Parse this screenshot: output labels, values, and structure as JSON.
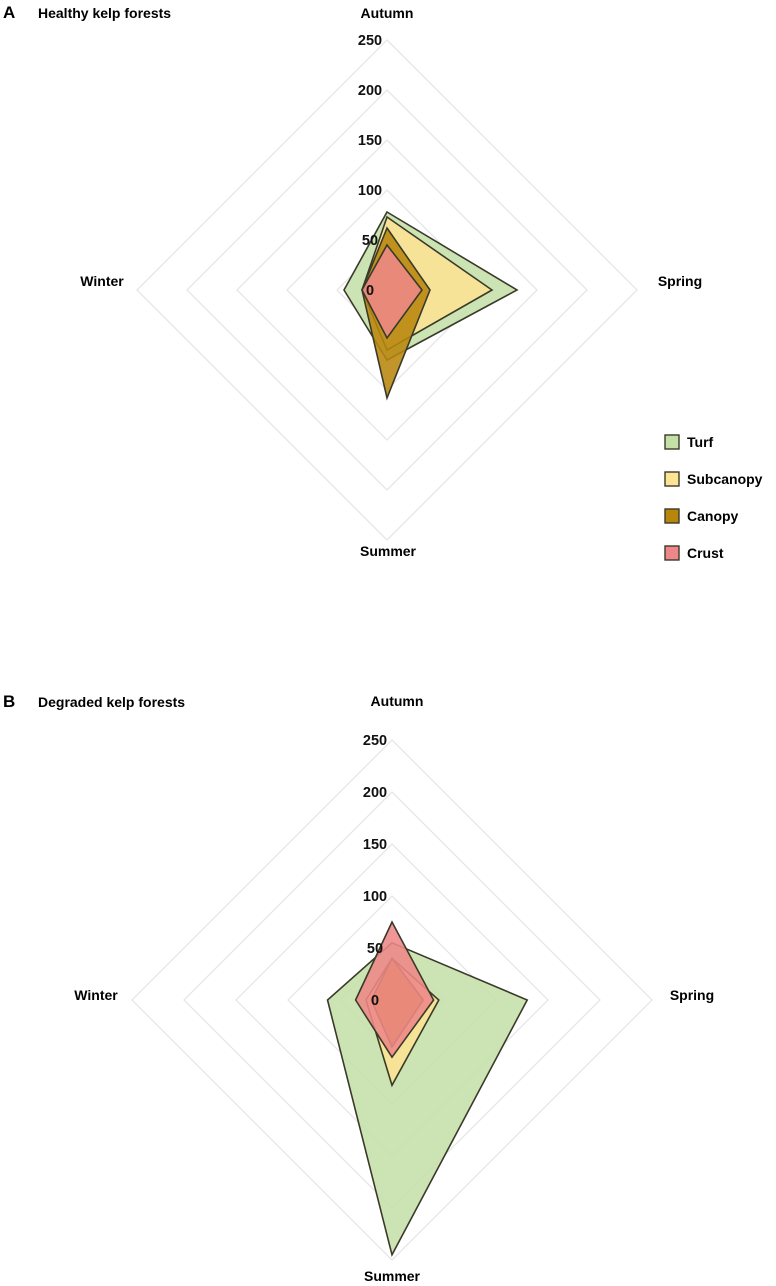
{
  "chart_data": [
    {
      "type": "radar",
      "panel_letter": "A",
      "title": "Healthy kelp forests",
      "axes": [
        "Autumn",
        "Spring",
        "Summer",
        "Winter"
      ],
      "rlim": [
        0,
        250
      ],
      "ticks": [
        0,
        50,
        100,
        150,
        200,
        250
      ],
      "grid": true,
      "legend": "right",
      "series": [
        {
          "name": "Turf",
          "values": [
            78,
            130,
            70,
            43
          ],
          "color": "#c5dfa8"
        },
        {
          "name": "Subcanopy",
          "values": [
            73,
            105,
            60,
            25
          ],
          "color": "#fde394"
        },
        {
          "name": "Canopy",
          "values": [
            62,
            43,
            108,
            25
          ],
          "color": "#b8860b"
        },
        {
          "name": "Crust",
          "values": [
            45,
            35,
            48,
            25
          ],
          "color": "#ee8888"
        }
      ]
    },
    {
      "type": "radar",
      "panel_letter": "B",
      "title": "Degraded kelp forests",
      "axes": [
        "Autumn",
        "Spring",
        "Summer",
        "Winter"
      ],
      "rlim": [
        0,
        250
      ],
      "ticks": [
        0,
        50,
        100,
        150,
        200,
        250
      ],
      "grid": true,
      "series": [
        {
          "name": "Turf",
          "values": [
            55,
            130,
            245,
            62
          ],
          "color": "#c5dfa8"
        },
        {
          "name": "Subcanopy",
          "values": [
            40,
            45,
            82,
            25
          ],
          "color": "#fde394"
        },
        {
          "name": "Canopy",
          "values": [
            40,
            30,
            45,
            20
          ],
          "color": "#b8860b"
        },
        {
          "name": "Crust",
          "values": [
            75,
            40,
            55,
            35
          ],
          "color": "#ee8888"
        }
      ]
    }
  ]
}
